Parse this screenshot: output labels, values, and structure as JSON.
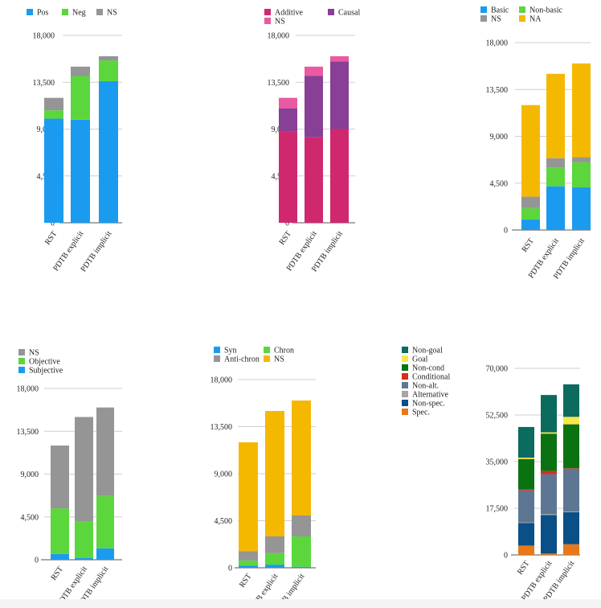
{
  "chart_data": [
    {
      "id": "polarity",
      "type": "bar",
      "stacked": true,
      "categories": [
        "RST",
        "PDTB explicit",
        "PDTB implicit"
      ],
      "series": [
        {
          "name": "Pos",
          "color": "#1a9bf0",
          "values": [
            10000,
            9900,
            13600
          ]
        },
        {
          "name": "Neg",
          "color": "#5cd63d",
          "values": [
            800,
            4200,
            2000
          ]
        },
        {
          "name": "NS",
          "color": "#959595",
          "values": [
            1200,
            900,
            400
          ]
        }
      ],
      "ylim": [
        0,
        18000
      ],
      "yticks": [
        "0",
        "4,500",
        "9,000",
        "13,500",
        "18,000"
      ],
      "grid": true,
      "legend": "top-left"
    },
    {
      "id": "basic-operation",
      "type": "bar",
      "stacked": true,
      "categories": [
        "RST",
        "PDTB explicit",
        "PDTB implicit"
      ],
      "series": [
        {
          "name": "Additive",
          "color": "#d0286f",
          "values": [
            8800,
            8200,
            9000
          ]
        },
        {
          "name": "Causal",
          "color": "#874095",
          "values": [
            2200,
            5900,
            6500
          ]
        },
        {
          "name": "NS",
          "color": "#ea5aa2",
          "values": [
            1000,
            900,
            500
          ]
        }
      ],
      "ylim": [
        0,
        18000
      ],
      "yticks": [
        "0",
        "4,500",
        "9,000",
        "13,500",
        "18,000"
      ],
      "grid": true,
      "legend": "top-left"
    },
    {
      "id": "implication-order",
      "type": "bar",
      "stacked": true,
      "categories": [
        "RST",
        "PDTB explicit",
        "PDTB implicit"
      ],
      "series": [
        {
          "name": "Basic",
          "color": "#1a9bf0",
          "values": [
            1000,
            4200,
            4100
          ]
        },
        {
          "name": "Non-basic",
          "color": "#5cd63d",
          "values": [
            1100,
            1800,
            2400
          ]
        },
        {
          "name": "NS",
          "color": "#959595",
          "values": [
            1100,
            900,
            500
          ]
        },
        {
          "name": "NA",
          "color": "#f5b800",
          "values": [
            8800,
            8100,
            9000
          ]
        }
      ],
      "ylim": [
        0,
        18000
      ],
      "yticks": [
        "0",
        "4,500",
        "9,000",
        "13,500",
        "18,000"
      ],
      "grid": true,
      "legend": "top-left"
    },
    {
      "id": "source-of-coherence",
      "type": "bar",
      "stacked": true,
      "categories": [
        "RST",
        "PDTB explicit",
        "PDTB implicit"
      ],
      "series": [
        {
          "name": "Subjective",
          "color": "#1a9bf0",
          "values": [
            600,
            200,
            1200
          ]
        },
        {
          "name": "Objective",
          "color": "#5cd63d",
          "values": [
            4800,
            3800,
            5500
          ]
        },
        {
          "name": "NS",
          "color": "#959595",
          "values": [
            6600,
            11000,
            9300
          ]
        }
      ],
      "ylim": [
        0,
        18000
      ],
      "yticks": [
        "0",
        "4,500",
        "9,000",
        "13,500",
        "18,000"
      ],
      "grid": true,
      "legend": "top-left"
    },
    {
      "id": "temporal-order",
      "type": "bar",
      "stacked": true,
      "categories": [
        "RST",
        "PDTB explicit",
        "PDTB implicit"
      ],
      "series": [
        {
          "name": "Syn",
          "color": "#1a9bf0",
          "values": [
            200,
            300,
            100
          ]
        },
        {
          "name": "Chron",
          "color": "#5cd63d",
          "values": [
            500,
            1100,
            2900
          ]
        },
        {
          "name": "Anti-chron",
          "color": "#959595",
          "values": [
            900,
            1600,
            2000
          ]
        },
        {
          "name": "NS",
          "color": "#f5b800",
          "values": [
            10400,
            12000,
            11000
          ]
        }
      ],
      "ylim": [
        0,
        18000
      ],
      "yticks": [
        "0",
        "4,500",
        "9,000",
        "13,500",
        "18,000"
      ],
      "grid": true,
      "legend": "top-left"
    },
    {
      "id": "specificity-alternative-conditional-goal",
      "type": "bar",
      "stacked": true,
      "categories": [
        "RST",
        "PDTB explicit",
        "PDTB implicit"
      ],
      "series": [
        {
          "name": "Spec.",
          "color": "#e87818",
          "values": [
            3500,
            500,
            4000
          ]
        },
        {
          "name": "Non-spec.",
          "color": "#0a4f86",
          "values": [
            8500,
            14500,
            12000
          ]
        },
        {
          "name": "Alternative",
          "color": "#a5a5a5",
          "values": [
            200,
            300,
            300
          ]
        },
        {
          "name": "Non-alt.",
          "color": "#5d7693",
          "values": [
            12000,
            15000,
            16000
          ]
        },
        {
          "name": "Conditional",
          "color": "#d92c1c",
          "values": [
            300,
            1200,
            200
          ]
        },
        {
          "name": "Non-cond",
          "color": "#0b7212",
          "values": [
            11500,
            14000,
            16500
          ]
        },
        {
          "name": "Goal",
          "color": "#f7e84a",
          "values": [
            500,
            500,
            2800
          ]
        },
        {
          "name": "Non-goal",
          "color": "#0b6b5f",
          "values": [
            11500,
            14000,
            12200
          ]
        }
      ],
      "ylim": [
        0,
        70000
      ],
      "yticks": [
        "0",
        "17,500",
        "35,000",
        "52,500",
        "70,000"
      ],
      "grid": true,
      "legend": "left"
    }
  ]
}
